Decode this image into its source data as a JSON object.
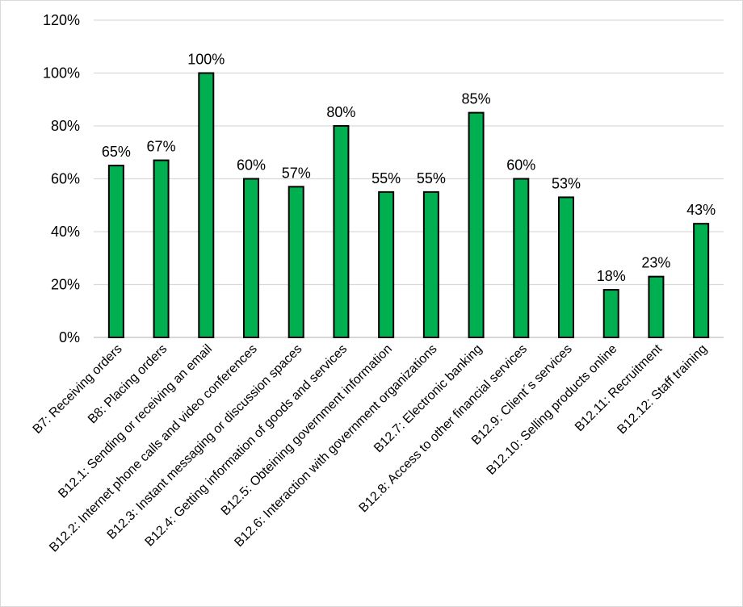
{
  "chart_data": {
    "type": "bar",
    "title": "",
    "xlabel": "",
    "ylabel": "",
    "ylim": [
      0,
      1.2
    ],
    "yticks": [
      "0%",
      "20%",
      "40%",
      "60%",
      "80%",
      "100%",
      "120%"
    ],
    "grid": "horizontal",
    "bar_color": "#00b050",
    "bar_edge_color": "#000000",
    "categories": [
      "B7: Receiving orders",
      "B8: Placing orders",
      "B12.1: Sending or receiving an email",
      "B12.2: Internet phone calls and video conferences",
      "B12.3: Instant messaging or discussion spaces",
      "B12.4: Getting information of goods and services",
      "B12.5: Obteining government information",
      "B12.6: Interaction with government organizations",
      "B12.7: Electronic banking",
      "B12.8: Access to other financial services",
      "B12.9: Client´s services",
      "B12.10: Selling products online",
      "B12.11: Recruitment",
      "B12.12: Staff training"
    ],
    "values": [
      0.65,
      0.67,
      1.0,
      0.6,
      0.57,
      0.8,
      0.55,
      0.55,
      0.85,
      0.6,
      0.53,
      0.18,
      0.23,
      0.43
    ],
    "data_labels": [
      "65%",
      "67%",
      "100%",
      "60%",
      "57%",
      "80%",
      "55%",
      "55%",
      "85%",
      "60%",
      "53%",
      "18%",
      "23%",
      "43%"
    ]
  }
}
